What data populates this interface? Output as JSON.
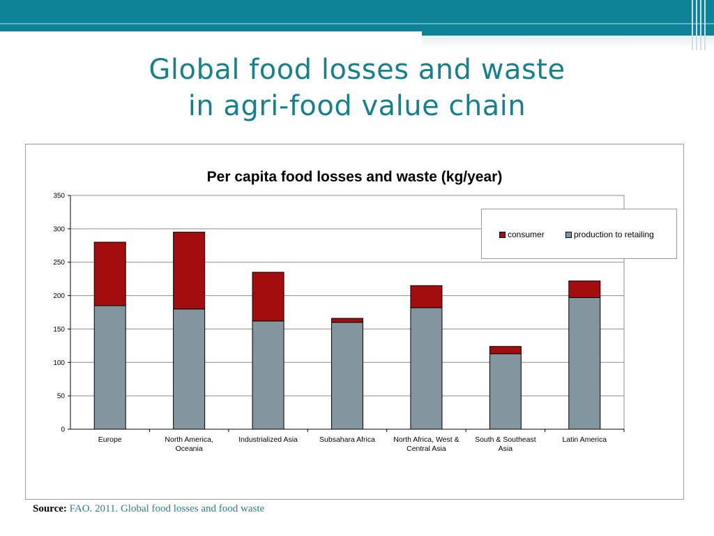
{
  "slide": {
    "title_line1": "Global food losses and waste",
    "title_line2": "in agri-food value chain",
    "source_label": "Source:",
    "source_text": "FAO. 2011. Global food losses and food waste"
  },
  "colors": {
    "header": "#0e8397",
    "title": "#17808f",
    "consumer": "#a30d0d",
    "production": "#84969d"
  },
  "chart_data": {
    "type": "bar",
    "stacked": true,
    "title": "Per capita food losses and waste (kg/year)",
    "xlabel": "",
    "ylabel": "",
    "ylim": [
      0,
      350
    ],
    "yticks": [
      0,
      50,
      100,
      150,
      200,
      250,
      300,
      350
    ],
    "grid": true,
    "legend_position": "top-right",
    "categories": [
      [
        "Europe"
      ],
      [
        "North America,",
        "Oceania"
      ],
      [
        "Industrialized Asia"
      ],
      [
        "Subsahara Africa"
      ],
      [
        "North Africa, West &",
        "Central Asia"
      ],
      [
        "South & Southeast",
        "Asia"
      ],
      [
        "Latin America"
      ]
    ],
    "series": [
      {
        "name": "production to retailing",
        "color": "#84969d",
        "values": [
          185,
          180,
          162,
          160,
          182,
          113,
          197
        ]
      },
      {
        "name": "consumer",
        "color": "#a30d0d",
        "values": [
          95,
          115,
          73,
          6,
          33,
          11,
          25
        ]
      }
    ],
    "legend": [
      "consumer",
      "production to retailing"
    ]
  }
}
